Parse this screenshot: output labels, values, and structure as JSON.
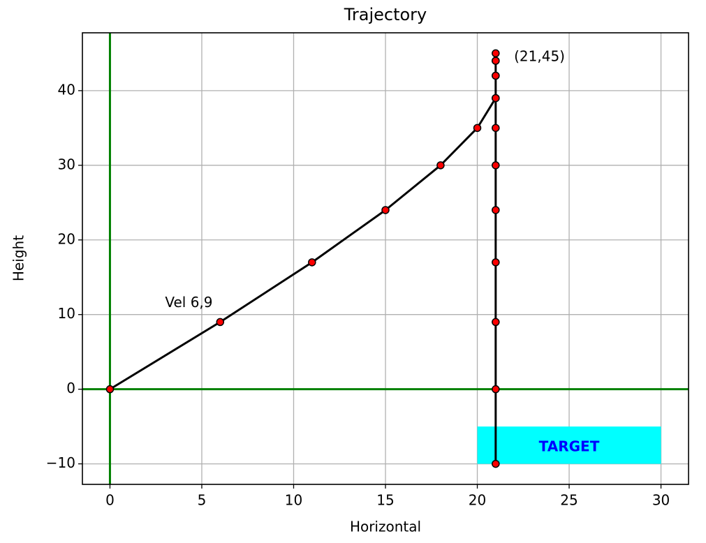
{
  "chart_data": {
    "type": "line",
    "title": "Trajectory",
    "x_label": "Horizontal",
    "y_label": "Height",
    "x": [
      0,
      6,
      11,
      15,
      18,
      20,
      21,
      21,
      21,
      21,
      21,
      21,
      21,
      21,
      21,
      21,
      21,
      21,
      21,
      21
    ],
    "values": [
      0,
      9,
      17,
      24,
      30,
      35,
      39,
      42,
      44,
      45,
      44,
      42,
      39,
      35,
      30,
      24,
      17,
      9,
      0,
      -10
    ],
    "color": "#000000",
    "marker_color": "#ff0000",
    "xlim": [
      -1.5,
      31.5
    ],
    "ylim": [
      -12.75,
      47.75
    ],
    "xticks": [
      0,
      5,
      10,
      15,
      20,
      25,
      30
    ],
    "yticks": [
      {
        "value": -10,
        "label": "−10"
      },
      0,
      10,
      20,
      30,
      40
    ],
    "grid": true,
    "zero_lines": true,
    "zero_line_color": "#008000",
    "target": {
      "xlim": [
        20,
        30
      ],
      "ylim": [
        -10,
        -5
      ],
      "color": "#00ffff",
      "text": "TARGET",
      "text_color": "#0000ff",
      "text_x": 25,
      "text_y": -7.8
    },
    "annotations": [
      {
        "text": "Vel 6,9",
        "x": 3,
        "y": 11.5
      },
      {
        "text": "(21,45)",
        "x": 22,
        "y": 44.5
      }
    ]
  }
}
